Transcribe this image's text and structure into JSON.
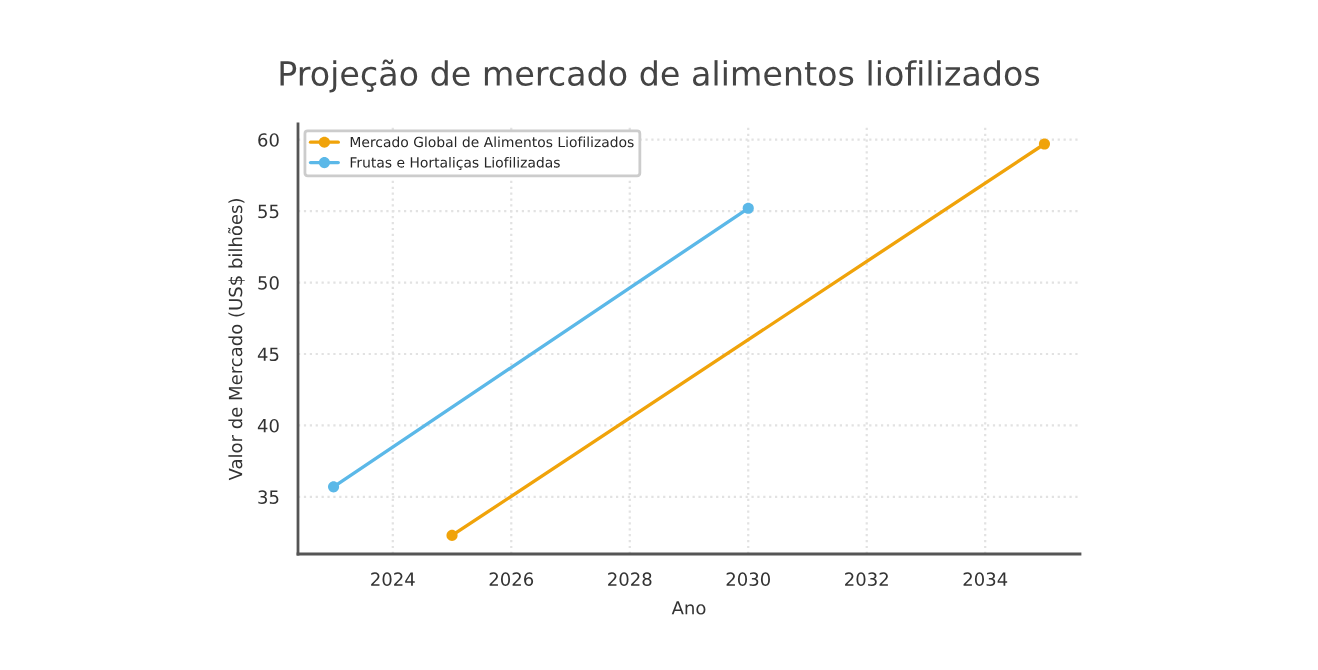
{
  "chart_data": {
    "type": "line",
    "title": "Projeção de mercado de alimentos liofilizados",
    "xlabel": "Ano",
    "ylabel": "Valor de Mercado (US$ bilhões)",
    "series": [
      {
        "name": "Mercado Global de Alimentos Liofilizados",
        "color": "#f0a30a",
        "x": [
          2025,
          2035
        ],
        "values": [
          32.3,
          59.7
        ]
      },
      {
        "name": "Frutas e Hortaliças Liofilizadas",
        "color": "#5bb8e8",
        "x": [
          2023,
          2030
        ],
        "values": [
          35.7,
          55.2
        ]
      }
    ],
    "xlim": [
      2022.4,
      2035.6
    ],
    "xticks": [
      2024,
      2026,
      2028,
      2030,
      2032,
      2034
    ],
    "ylim": [
      31,
      61.1
    ],
    "yticks": [
      35,
      40,
      45,
      50,
      55,
      60
    ],
    "grid": true,
    "legend": "top left",
    "marker": "circle",
    "line_style": "solid"
  }
}
